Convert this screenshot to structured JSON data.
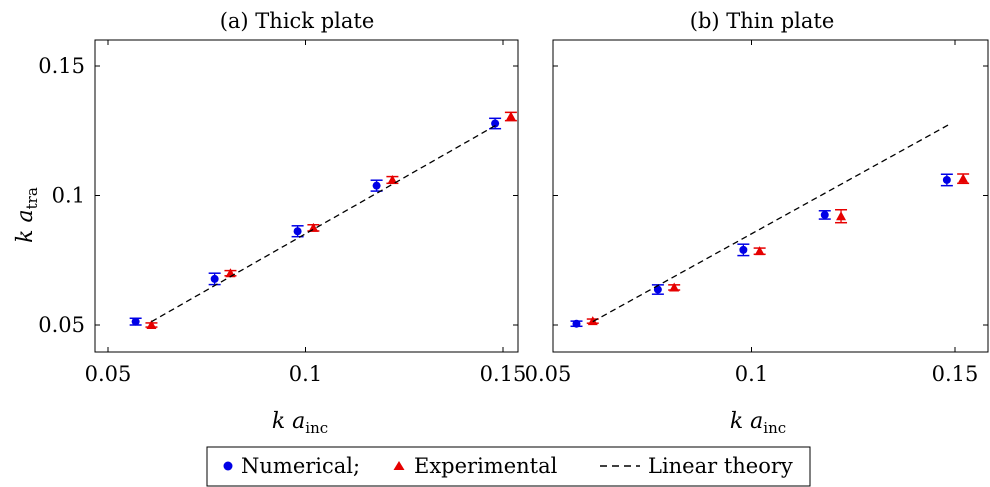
{
  "chart_data": [
    {
      "type": "scatter",
      "title": "(a) Thick plate",
      "xlabel": "k a_inc",
      "ylabel": "k a_tra",
      "xlim": [
        0.05,
        0.16
      ],
      "ylim": [
        0.04,
        0.16
      ],
      "xticks": [
        0.05,
        0.1,
        0.15
      ],
      "yticks": [
        0.05,
        0.1,
        0.15
      ],
      "grid": false,
      "series": [
        {
          "name": "Numerical",
          "marker": "circle",
          "color": "#0000e6",
          "x": [
            0.057,
            0.077,
            0.098,
            0.118,
            0.148
          ],
          "y": [
            0.0513,
            0.0678,
            0.0862,
            0.1038,
            0.1278
          ],
          "err": [
            0.0013,
            0.0022,
            0.0021,
            0.0021,
            0.002
          ]
        },
        {
          "name": "Experimental",
          "marker": "triangle",
          "color": "#e60000",
          "x": [
            0.061,
            0.081,
            0.102,
            0.122,
            0.152
          ],
          "y": [
            0.05,
            0.07,
            0.0875,
            0.106,
            0.1305
          ],
          "err": [
            0.0008,
            0.001,
            0.0012,
            0.0013,
            0.0016
          ]
        },
        {
          "name": "Linear theory",
          "line": "dashed",
          "color": "#000000",
          "x": [
            0.061,
            0.149
          ],
          "y": [
            0.0513,
            0.1278
          ]
        }
      ]
    },
    {
      "type": "scatter",
      "title": "(b) Thin plate",
      "xlabel": "k a_inc",
      "ylabel": "",
      "xlim": [
        0.05,
        0.16
      ],
      "ylim": [
        0.04,
        0.16
      ],
      "xticks": [
        0.05,
        0.1,
        0.15
      ],
      "yticks": [
        0.05,
        0.1,
        0.15
      ],
      "grid": false,
      "series": [
        {
          "name": "Numerical",
          "marker": "circle",
          "color": "#0000e6",
          "x": [
            0.057,
            0.077,
            0.098,
            0.118,
            0.148
          ],
          "y": [
            0.0505,
            0.0637,
            0.079,
            0.0925,
            0.106
          ],
          "err": [
            0.001,
            0.0018,
            0.0022,
            0.0016,
            0.0022
          ]
        },
        {
          "name": "Experimental",
          "marker": "triangle",
          "color": "#e60000",
          "x": [
            0.061,
            0.081,
            0.102,
            0.122,
            0.152
          ],
          "y": [
            0.0515,
            0.0645,
            0.0785,
            0.092,
            0.1065
          ],
          "err": [
            0.0008,
            0.001,
            0.0012,
            0.0025,
            0.0018
          ]
        },
        {
          "name": "Linear theory",
          "line": "dashed",
          "color": "#000000",
          "x": [
            0.061,
            0.149
          ],
          "y": [
            0.0513,
            0.1278
          ]
        }
      ]
    }
  ],
  "legend": {
    "items": [
      {
        "label": "Numerical;",
        "marker": "circle",
        "color": "#0000e6"
      },
      {
        "label": "Experimental",
        "marker": "triangle",
        "color": "#e60000"
      },
      {
        "label": "Linear theory",
        "marker": "dashed-line",
        "color": "#000000"
      }
    ],
    "placement": "bottom-center"
  }
}
